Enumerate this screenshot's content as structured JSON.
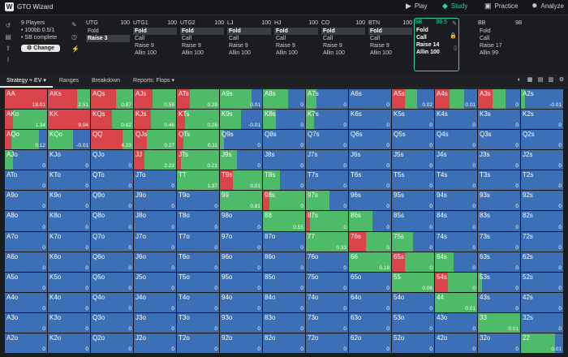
{
  "app": {
    "title": "GTO Wizard"
  },
  "nav": [
    {
      "label": "Play",
      "icon": "play-icon"
    },
    {
      "label": "Study",
      "icon": "study-icon",
      "active": true
    },
    {
      "label": "Practice",
      "icon": "practice-icon"
    },
    {
      "label": "Analyze",
      "icon": "analyze-icon"
    }
  ],
  "info": {
    "players": "9 Players",
    "stakes": "• 100bb 0.5/1",
    "complete": "• SB complete",
    "change": "Change"
  },
  "seats": [
    {
      "name": "UTG",
      "stack": "100",
      "actions": [
        "Fold",
        "Raise 3"
      ],
      "selected": 1
    },
    {
      "name": "UTG1",
      "stack": "100",
      "actions": [
        "Fold",
        "Call",
        "Raise 9",
        "Allin 100"
      ],
      "selected": 0
    },
    {
      "name": "UTG2",
      "stack": "100",
      "actions": [
        "Fold",
        "Call",
        "Raise 9",
        "Allin 100"
      ],
      "selected": 0
    },
    {
      "name": "LJ",
      "stack": "100",
      "actions": [
        "Fold",
        "Call",
        "Raise 9",
        "Allin 100"
      ],
      "selected": 0
    },
    {
      "name": "HJ",
      "stack": "100",
      "actions": [
        "Fold",
        "Call",
        "Raise 9",
        "Allin 100"
      ],
      "selected": 0
    },
    {
      "name": "CO",
      "stack": "100",
      "actions": [
        "Fold",
        "Call",
        "Raise 9",
        "Allin 100"
      ],
      "selected": 0
    },
    {
      "name": "BTN",
      "stack": "100",
      "actions": [
        "Fold",
        "Call",
        "Raise 9",
        "Allin 100"
      ],
      "selected": 0
    },
    {
      "name": "SB",
      "stack": "99.5",
      "actions": [
        "Fold",
        "Call",
        "Raise 14",
        "Allin 100"
      ],
      "selected": -1,
      "hero": true
    },
    {
      "name": "BB",
      "stack": "98",
      "actions": [
        "Fold",
        "Call",
        "Raise 17",
        "Allin 99"
      ],
      "selected": -1
    }
  ],
  "tabs": [
    "Strategy + EV",
    "Ranges",
    "Breakdown",
    "Reports: Flops"
  ],
  "colors": {
    "raise": "#d9434a",
    "call": "#4dbb67",
    "fold": "#3b6fb6",
    "accent": "#2ed3a2"
  },
  "matrix": [
    [
      "AA",
      "18.01",
      "AKs",
      "2.51",
      "AQs",
      "0.87",
      "AJs",
      "0.59",
      "ATs",
      "0.29",
      "A9s",
      "0.01",
      "A8s",
      "0",
      "A7s",
      "0",
      "A6s",
      "0",
      "A5s",
      "0.02",
      "A4s",
      "0.01",
      "A3s",
      "0",
      "A2s",
      "-0.01"
    ],
    [
      "AKo",
      "1.34",
      "KK",
      "9.04",
      "KQs",
      "0.62",
      "KJs",
      "0.46",
      "KTs",
      "0.26",
      "K9s",
      "-0.01",
      "K8s",
      "0",
      "K7s",
      "0",
      "K6s",
      "0",
      "K5s",
      "0",
      "K4s",
      "0",
      "K3s",
      "0",
      "K2s",
      "0"
    ],
    [
      "AQo",
      "0.12",
      "KQo",
      "-0.01",
      "QQ",
      "4.23",
      "QJs",
      "0.27",
      "QTs",
      "0.11",
      "Q9s",
      "0",
      "Q8s",
      "0",
      "Q7s",
      "0",
      "Q6s",
      "0",
      "Q5s",
      "0",
      "Q4s",
      "0",
      "Q3s",
      "0",
      "Q2s",
      "0"
    ],
    [
      "AJo",
      "0",
      "KJo",
      "0",
      "QJo",
      "0",
      "JJ",
      "2.22",
      "JTs",
      "0.21",
      "J9s",
      "0",
      "J8s",
      "0",
      "J7s",
      "0",
      "J6s",
      "0",
      "J5s",
      "0",
      "J4s",
      "0",
      "J3s",
      "0",
      "J2s",
      "0"
    ],
    [
      "ATo",
      "0",
      "KTo",
      "0",
      "QTo",
      "0",
      "JTo",
      "0",
      "TT",
      "1.37",
      "T9s",
      "0.01",
      "T8s",
      "0",
      "T7s",
      "0",
      "T6s",
      "0",
      "T5s",
      "0",
      "T4s",
      "0",
      "T3s",
      "0",
      "T2s",
      "0"
    ],
    [
      "A9o",
      "0",
      "K9o",
      "0",
      "Q9o",
      "0",
      "J9o",
      "0",
      "T9o",
      "0",
      "99",
      "0.81",
      "98s",
      "0",
      "97s",
      "0",
      "96s",
      "0",
      "95s",
      "0",
      "94s",
      "0",
      "93s",
      "0",
      "92s",
      "0"
    ],
    [
      "A8o",
      "0",
      "K8o",
      "0",
      "Q8o",
      "0",
      "J8o",
      "0",
      "T8o",
      "0",
      "98o",
      "0",
      "88",
      "0.55",
      "87s",
      "0",
      "86s",
      "0",
      "85s",
      "0",
      "84s",
      "0",
      "83s",
      "0",
      "82s",
      "0"
    ],
    [
      "A7o",
      "0",
      "K7o",
      "0",
      "Q7o",
      "0",
      "J7o",
      "0",
      "T7o",
      "0",
      "97o",
      "0",
      "87o",
      "0",
      "77",
      "0.33",
      "76s",
      "0",
      "75s",
      "0",
      "74s",
      "0",
      "73s",
      "0",
      "72s",
      "0"
    ],
    [
      "A6o",
      "0",
      "K6o",
      "0",
      "Q6o",
      "0",
      "J6o",
      "0",
      "T6o",
      "0",
      "96o",
      "0",
      "86o",
      "0",
      "76o",
      "0",
      "66",
      "0.19",
      "65s",
      "0",
      "64s",
      "0",
      "63s",
      "0",
      "62s",
      "0"
    ],
    [
      "A5o",
      "0",
      "K5o",
      "0",
      "Q5o",
      "0",
      "J5o",
      "0",
      "T5o",
      "0",
      "95o",
      "0",
      "85o",
      "0",
      "75o",
      "0",
      "65o",
      "0",
      "55",
      "0.06",
      "54s",
      "0",
      "53s",
      "0",
      "52s",
      "0"
    ],
    [
      "A4o",
      "0",
      "K4o",
      "0",
      "Q4o",
      "0",
      "J4o",
      "0",
      "T4o",
      "0",
      "94o",
      "0",
      "84o",
      "0",
      "74o",
      "0",
      "64o",
      "0",
      "54o",
      "0",
      "44",
      "0.01",
      "43s",
      "0",
      "42s",
      "0"
    ],
    [
      "A3o",
      "0",
      "K3o",
      "0",
      "Q3o",
      "0",
      "J3o",
      "0",
      "T3o",
      "0",
      "93o",
      "0",
      "83o",
      "0",
      "73o",
      "0",
      "63o",
      "0",
      "53o",
      "0",
      "43o",
      "0",
      "33",
      "0.01",
      "32s",
      "0"
    ],
    [
      "A2o",
      "0",
      "K2o",
      "0",
      "Q2o",
      "0",
      "J2o",
      "0",
      "T2o",
      "0",
      "92o",
      "0",
      "82o",
      "0",
      "72o",
      "0",
      "62o",
      "0",
      "52o",
      "0",
      "42o",
      "0",
      "32o",
      "0",
      "22",
      "0.01"
    ]
  ],
  "strategy": [
    [
      [
        1,
        0
      ],
      [
        0.7,
        0.3
      ],
      [
        0.6,
        0.4
      ],
      [
        0.45,
        0.55
      ],
      [
        0.3,
        0.7
      ],
      [
        0,
        0.75
      ],
      [
        0,
        0.6
      ],
      [
        0,
        0.25
      ],
      [
        0,
        0
      ],
      [
        0.3,
        0.3
      ],
      [
        0.35,
        0.35
      ],
      [
        0.35,
        0.3
      ],
      [
        0,
        0.1
      ]
    ],
    [
      [
        0.2,
        0.8
      ],
      [
        1,
        0
      ],
      [
        0.5,
        0.5
      ],
      [
        0.4,
        0.6
      ],
      [
        0.2,
        0.8
      ],
      [
        0,
        0.5
      ],
      [
        0,
        0.3
      ],
      [
        0,
        0.2
      ],
      [
        0,
        0
      ],
      [
        0,
        0
      ],
      [
        0,
        0
      ],
      [
        0,
        0
      ],
      [
        0,
        0
      ]
    ],
    [
      [
        0.15,
        0.65
      ],
      [
        0,
        0.6
      ],
      [
        0.75,
        0.25
      ],
      [
        0.3,
        0.7
      ],
      [
        0.15,
        0.85
      ],
      [
        0,
        0.1
      ],
      [
        0,
        0
      ],
      [
        0,
        0
      ],
      [
        0,
        0
      ],
      [
        0,
        0
      ],
      [
        0,
        0
      ],
      [
        0,
        0
      ],
      [
        0,
        0
      ]
    ],
    [
      [
        0,
        0.2
      ],
      [
        0,
        0
      ],
      [
        0,
        0
      ],
      [
        0.25,
        0.75
      ],
      [
        0.1,
        0.9
      ],
      [
        0,
        0.4
      ],
      [
        0,
        0
      ],
      [
        0,
        0
      ],
      [
        0,
        0
      ],
      [
        0,
        0
      ],
      [
        0,
        0
      ],
      [
        0,
        0
      ],
      [
        0,
        0
      ]
    ],
    [
      [
        0,
        0
      ],
      [
        0,
        0
      ],
      [
        0,
        0
      ],
      [
        0,
        0
      ],
      [
        0,
        1
      ],
      [
        0.3,
        0.7
      ],
      [
        0,
        0.4
      ],
      [
        0,
        0
      ],
      [
        0,
        0
      ],
      [
        0,
        0
      ],
      [
        0,
        0
      ],
      [
        0,
        0
      ],
      [
        0,
        0
      ]
    ],
    [
      [
        0,
        0
      ],
      [
        0,
        0
      ],
      [
        0,
        0
      ],
      [
        0,
        0
      ],
      [
        0,
        0
      ],
      [
        0,
        1
      ],
      [
        0.15,
        0.85
      ],
      [
        0,
        0.55
      ],
      [
        0,
        0
      ],
      [
        0,
        0
      ],
      [
        0,
        0
      ],
      [
        0,
        0
      ],
      [
        0,
        0
      ]
    ],
    [
      [
        0,
        0
      ],
      [
        0,
        0
      ],
      [
        0,
        0
      ],
      [
        0,
        0
      ],
      [
        0,
        0
      ],
      [
        0,
        0
      ],
      [
        0,
        1
      ],
      [
        0.1,
        0.9
      ],
      [
        0,
        0.55
      ],
      [
        0,
        0
      ],
      [
        0,
        0
      ],
      [
        0,
        0
      ],
      [
        0,
        0
      ]
    ],
    [
      [
        0,
        0
      ],
      [
        0,
        0
      ],
      [
        0,
        0
      ],
      [
        0,
        0
      ],
      [
        0,
        0
      ],
      [
        0,
        0
      ],
      [
        0,
        0
      ],
      [
        0,
        1
      ],
      [
        0.4,
        0.6
      ],
      [
        0,
        0.5
      ],
      [
        0,
        0
      ],
      [
        0,
        0
      ],
      [
        0,
        0
      ]
    ],
    [
      [
        0,
        0
      ],
      [
        0,
        0
      ],
      [
        0,
        0
      ],
      [
        0,
        0
      ],
      [
        0,
        0
      ],
      [
        0,
        0
      ],
      [
        0,
        0
      ],
      [
        0,
        0
      ],
      [
        0,
        1
      ],
      [
        0.3,
        0.7
      ],
      [
        0,
        0.45
      ],
      [
        0,
        0
      ],
      [
        0,
        0
      ]
    ],
    [
      [
        0,
        0
      ],
      [
        0,
        0
      ],
      [
        0,
        0
      ],
      [
        0,
        0
      ],
      [
        0,
        0
      ],
      [
        0,
        0
      ],
      [
        0,
        0
      ],
      [
        0,
        0
      ],
      [
        0,
        0
      ],
      [
        0,
        1
      ],
      [
        0.3,
        0.7
      ],
      [
        0,
        0.1
      ],
      [
        0,
        0
      ]
    ],
    [
      [
        0,
        0
      ],
      [
        0,
        0
      ],
      [
        0,
        0
      ],
      [
        0,
        0
      ],
      [
        0,
        0
      ],
      [
        0,
        0
      ],
      [
        0,
        0
      ],
      [
        0,
        0
      ],
      [
        0,
        0
      ],
      [
        0,
        0
      ],
      [
        0,
        1
      ],
      [
        0,
        0
      ],
      [
        0,
        0
      ]
    ],
    [
      [
        0,
        0
      ],
      [
        0,
        0
      ],
      [
        0,
        0
      ],
      [
        0,
        0
      ],
      [
        0,
        0
      ],
      [
        0,
        0
      ],
      [
        0,
        0
      ],
      [
        0,
        0
      ],
      [
        0,
        0
      ],
      [
        0,
        0
      ],
      [
        0,
        0
      ],
      [
        0,
        1
      ],
      [
        0,
        0
      ]
    ],
    [
      [
        0,
        0
      ],
      [
        0,
        0
      ],
      [
        0,
        0
      ],
      [
        0,
        0
      ],
      [
        0,
        0
      ],
      [
        0,
        0
      ],
      [
        0,
        0
      ],
      [
        0,
        0
      ],
      [
        0,
        0
      ],
      [
        0,
        0
      ],
      [
        0,
        0
      ],
      [
        0,
        0
      ],
      [
        0,
        0.8
      ]
    ]
  ]
}
